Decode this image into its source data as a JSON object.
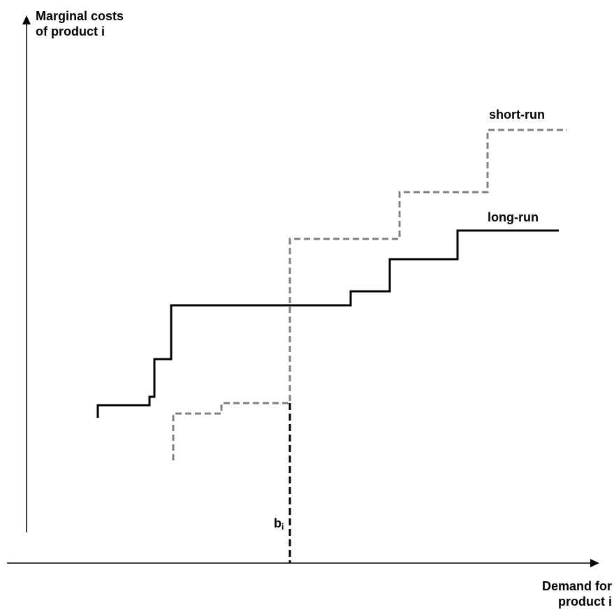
{
  "y_axis": {
    "label_line1": "Marginal costs",
    "label_line2": "of product i"
  },
  "x_axis": {
    "label_line1": "Demand for",
    "label_line2": "product i"
  },
  "series": [
    {
      "name": "short-run",
      "style": "dashed",
      "color": "#808080"
    },
    {
      "name": "long-run",
      "style": "solid",
      "color": "#000000"
    }
  ],
  "marker": {
    "base": "b",
    "subscript": "i",
    "style": "dashed",
    "color": "#000000"
  }
}
